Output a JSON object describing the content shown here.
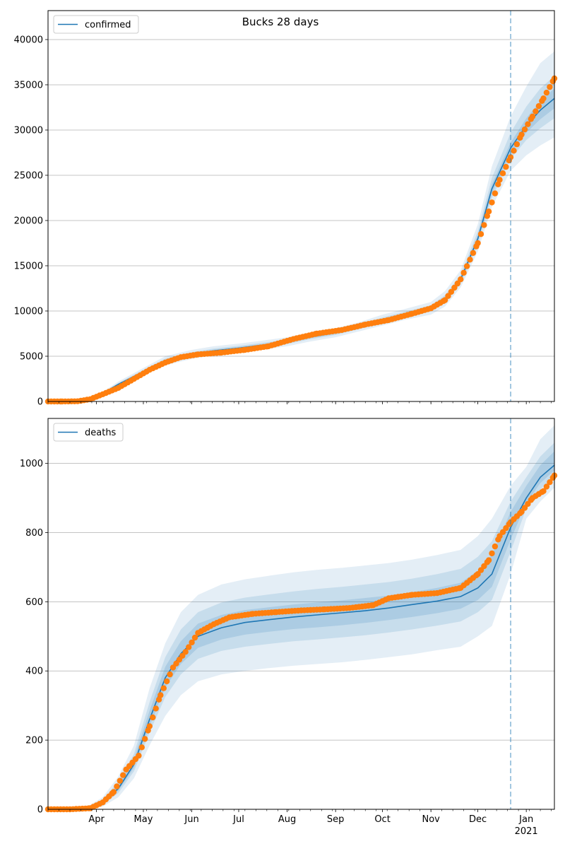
{
  "figure": {
    "title": "Bucks 28 days"
  },
  "chart_data": [
    {
      "type": "line",
      "panel": "top",
      "title": "",
      "xlabel": "",
      "ylabel": "",
      "x_axis": {
        "range": [
          "2020-03-01",
          "2021-01-19"
        ],
        "tick_labels": [
          "Apr",
          "May",
          "Jun",
          "Jul",
          "Aug",
          "Sep",
          "Oct",
          "Nov",
          "Dec",
          "Jan"
        ],
        "tick_dates": [
          "2020-04-01",
          "2020-05-01",
          "2020-06-01",
          "2020-07-01",
          "2020-08-01",
          "2020-09-01",
          "2020-10-01",
          "2020-11-01",
          "2020-12-01",
          "2021-01-01"
        ],
        "secondary_label": "2021"
      },
      "ylim": [
        0,
        43200
      ],
      "yticks": [
        0,
        5000,
        10000,
        15000,
        20000,
        25000,
        30000,
        35000,
        40000
      ],
      "grid": "horizontal",
      "legend": {
        "position": "top-left",
        "entries": [
          "confirmed"
        ]
      },
      "forecast_start": "2020-12-22",
      "colors": {
        "model": "#1f77b4",
        "observed": "#ff7f0e",
        "band": "#1f77b4"
      },
      "series": [
        {
          "name": "confirmed",
          "role": "model",
          "x": [
            "2020-03-01",
            "2020-03-15",
            "2020-04-01",
            "2020-04-15",
            "2020-05-01",
            "2020-05-15",
            "2020-06-01",
            "2020-06-15",
            "2020-07-01",
            "2020-07-15",
            "2020-08-01",
            "2020-08-15",
            "2020-09-01",
            "2020-09-15",
            "2020-10-01",
            "2020-10-15",
            "2020-11-01",
            "2020-11-10",
            "2020-11-20",
            "2020-12-01",
            "2020-12-10",
            "2020-12-22",
            "2021-01-01",
            "2021-01-10",
            "2021-01-19"
          ],
          "y": [
            0,
            60,
            500,
            1900,
            3300,
            4500,
            5200,
            5600,
            5900,
            6200,
            6600,
            7100,
            7600,
            8200,
            9000,
            9600,
            10300,
            11300,
            13500,
            18000,
            23500,
            28000,
            30500,
            32200,
            33500
          ],
          "bands": [
            {
              "lower": [
                0,
                40,
                400,
                1600,
                2900,
                4000,
                4700,
                5100,
                5400,
                5700,
                6100,
                6600,
                7100,
                7700,
                8400,
                9000,
                9600,
                10500,
                12600,
                16600,
                21500,
                25500,
                27200,
                28300,
                29200
              ],
              "upper": [
                0,
                80,
                600,
                2200,
                3700,
                5000,
                5700,
                6100,
                6400,
                6700,
                7100,
                7600,
                8100,
                8700,
                9600,
                10200,
                11000,
                12200,
                14500,
                19600,
                26000,
                31500,
                34800,
                37400,
                38700
              ]
            },
            {
              "lower": [
                0,
                50,
                450,
                1750,
                3100,
                4250,
                4950,
                5350,
                5650,
                5950,
                6350,
                6850,
                7350,
                7950,
                8700,
                9300,
                9950,
                10900,
                13000,
                17300,
                22500,
                26800,
                28900,
                30200,
                31300
              ],
              "upper": [
                0,
                70,
                550,
                2050,
                3500,
                4750,
                5450,
                5850,
                6150,
                6450,
                6850,
                7350,
                7850,
                8450,
                9300,
                9900,
                10650,
                11750,
                14000,
                18800,
                24700,
                29700,
                32600,
                34600,
                36000
              ]
            },
            {
              "lower": [
                0,
                55,
                470,
                1820,
                3200,
                4380,
                5080,
                5480,
                5780,
                6080,
                6480,
                6980,
                7480,
                8080,
                8850,
                9450,
                10120,
                11100,
                13250,
                17650,
                23000,
                27400,
                29700,
                31200,
                32400
              ],
              "upper": [
                0,
                65,
                530,
                1980,
                3400,
                4620,
                5320,
                5720,
                6020,
                6320,
                6720,
                7220,
                7720,
                8320,
                9150,
                9750,
                10480,
                11500,
                13750,
                18350,
                24000,
                28600,
                31300,
                33200,
                34600
              ]
            }
          ]
        },
        {
          "name": "",
          "role": "observed",
          "x": [
            "2020-03-01",
            "2020-03-10",
            "2020-03-20",
            "2020-03-28",
            "2020-04-05",
            "2020-04-15",
            "2020-04-25",
            "2020-05-05",
            "2020-05-15",
            "2020-05-25",
            "2020-06-05",
            "2020-06-20",
            "2020-07-05",
            "2020-07-20",
            "2020-08-05",
            "2020-08-20",
            "2020-09-05",
            "2020-09-20",
            "2020-10-05",
            "2020-10-20",
            "2020-11-01",
            "2020-11-10",
            "2020-11-20",
            "2020-12-01",
            "2020-12-08",
            "2020-12-15",
            "2020-12-22",
            "2020-12-29",
            "2021-01-05",
            "2021-01-12",
            "2021-01-19"
          ],
          "y": [
            0,
            0,
            20,
            250,
            800,
            1500,
            2500,
            3500,
            4300,
            4900,
            5200,
            5400,
            5700,
            6100,
            6900,
            7500,
            7900,
            8500,
            9000,
            9700,
            10300,
            11200,
            13500,
            17500,
            21000,
            24500,
            27000,
            29500,
            31500,
            33500,
            35700
          ]
        }
      ]
    },
    {
      "type": "line",
      "panel": "bottom",
      "title": "",
      "xlabel": "",
      "ylabel": "",
      "x_axis": {
        "range": [
          "2020-03-01",
          "2021-01-19"
        ],
        "tick_labels": [
          "Apr",
          "May",
          "Jun",
          "Jul",
          "Aug",
          "Sep",
          "Oct",
          "Nov",
          "Dec",
          "Jan"
        ],
        "tick_dates": [
          "2020-04-01",
          "2020-05-01",
          "2020-06-01",
          "2020-07-01",
          "2020-08-01",
          "2020-09-01",
          "2020-10-01",
          "2020-11-01",
          "2020-12-01",
          "2021-01-01"
        ],
        "secondary_label": "2021"
      },
      "ylim": [
        0,
        1130
      ],
      "yticks": [
        0,
        200,
        400,
        600,
        800,
        1000
      ],
      "grid": "horizontal",
      "legend": {
        "position": "top-left",
        "entries": [
          "deaths"
        ]
      },
      "forecast_start": "2020-12-22",
      "colors": {
        "model": "#1f77b4",
        "observed": "#ff7f0e",
        "band": "#1f77b4"
      },
      "series": [
        {
          "name": "deaths",
          "role": "model",
          "x": [
            "2020-03-01",
            "2020-03-25",
            "2020-04-05",
            "2020-04-15",
            "2020-04-25",
            "2020-05-05",
            "2020-05-15",
            "2020-05-25",
            "2020-06-05",
            "2020-06-20",
            "2020-07-05",
            "2020-07-20",
            "2020-08-05",
            "2020-08-20",
            "2020-09-05",
            "2020-09-20",
            "2020-10-05",
            "2020-10-20",
            "2020-11-05",
            "2020-11-20",
            "2020-12-01",
            "2020-12-10",
            "2020-12-22",
            "2021-01-01",
            "2021-01-10",
            "2021-01-19"
          ],
          "y": [
            0,
            2,
            20,
            60,
            130,
            260,
            380,
            450,
            500,
            525,
            540,
            548,
            556,
            562,
            568,
            574,
            582,
            592,
            602,
            615,
            640,
            680,
            815,
            900,
            960,
            995
          ],
          "bands": [
            {
              "lower": [
                0,
                0,
                8,
                35,
                90,
                185,
                270,
                330,
                370,
                390,
                400,
                408,
                415,
                420,
                425,
                432,
                440,
                448,
                460,
                470,
                500,
                530,
                680,
                840,
                890,
                930
              ],
              "upper": [
                0,
                5,
                35,
                95,
                185,
                350,
                480,
                570,
                620,
                650,
                665,
                675,
                685,
                692,
                698,
                705,
                712,
                722,
                735,
                750,
                790,
                840,
                935,
                990,
                1070,
                1110
              ]
            },
            {
              "lower": [
                0,
                1,
                14,
                47,
                110,
                222,
                325,
                390,
                435,
                458,
                470,
                478,
                486,
                491,
                497,
                503,
                511,
                520,
                531,
                543,
                570,
                605,
                745,
                870,
                925,
                965
              ],
              "upper": [
                0,
                4,
                28,
                80,
                160,
                310,
                440,
                520,
                570,
                598,
                612,
                621,
                630,
                637,
                643,
                650,
                657,
                667,
                680,
                695,
                730,
                775,
                890,
                960,
                1020,
                1060
              ]
            },
            {
              "lower": [
                0,
                1,
                17,
                54,
                120,
                241,
                352,
                420,
                467,
                491,
                505,
                513,
                521,
                526,
                532,
                539,
                547,
                556,
                567,
                580,
                605,
                643,
                780,
                885,
                943,
                980
              ],
              "upper": [
                0,
                3,
                24,
                70,
                145,
                285,
                412,
                486,
                537,
                562,
                576,
                584,
                592,
                598,
                604,
                611,
                618,
                628,
                640,
                655,
                690,
                735,
                860,
                935,
                995,
                1035
              ]
            }
          ]
        },
        {
          "name": "",
          "role": "observed",
          "x": [
            "2020-03-01",
            "2020-03-15",
            "2020-03-28",
            "2020-04-05",
            "2020-04-12",
            "2020-04-20",
            "2020-04-28",
            "2020-05-05",
            "2020-05-12",
            "2020-05-20",
            "2020-05-28",
            "2020-06-05",
            "2020-06-15",
            "2020-06-25",
            "2020-07-10",
            "2020-07-25",
            "2020-08-10",
            "2020-08-25",
            "2020-09-10",
            "2020-09-25",
            "2020-10-05",
            "2020-10-20",
            "2020-11-05",
            "2020-11-20",
            "2020-12-01",
            "2020-12-08",
            "2020-12-15",
            "2020-12-22",
            "2020-12-29",
            "2021-01-05",
            "2021-01-12",
            "2021-01-19"
          ],
          "y": [
            0,
            0,
            3,
            20,
            50,
            115,
            155,
            240,
            330,
            410,
            455,
            510,
            535,
            555,
            565,
            570,
            575,
            578,
            582,
            590,
            610,
            620,
            625,
            640,
            680,
            720,
            790,
            830,
            860,
            900,
            920,
            965
          ]
        }
      ]
    }
  ]
}
